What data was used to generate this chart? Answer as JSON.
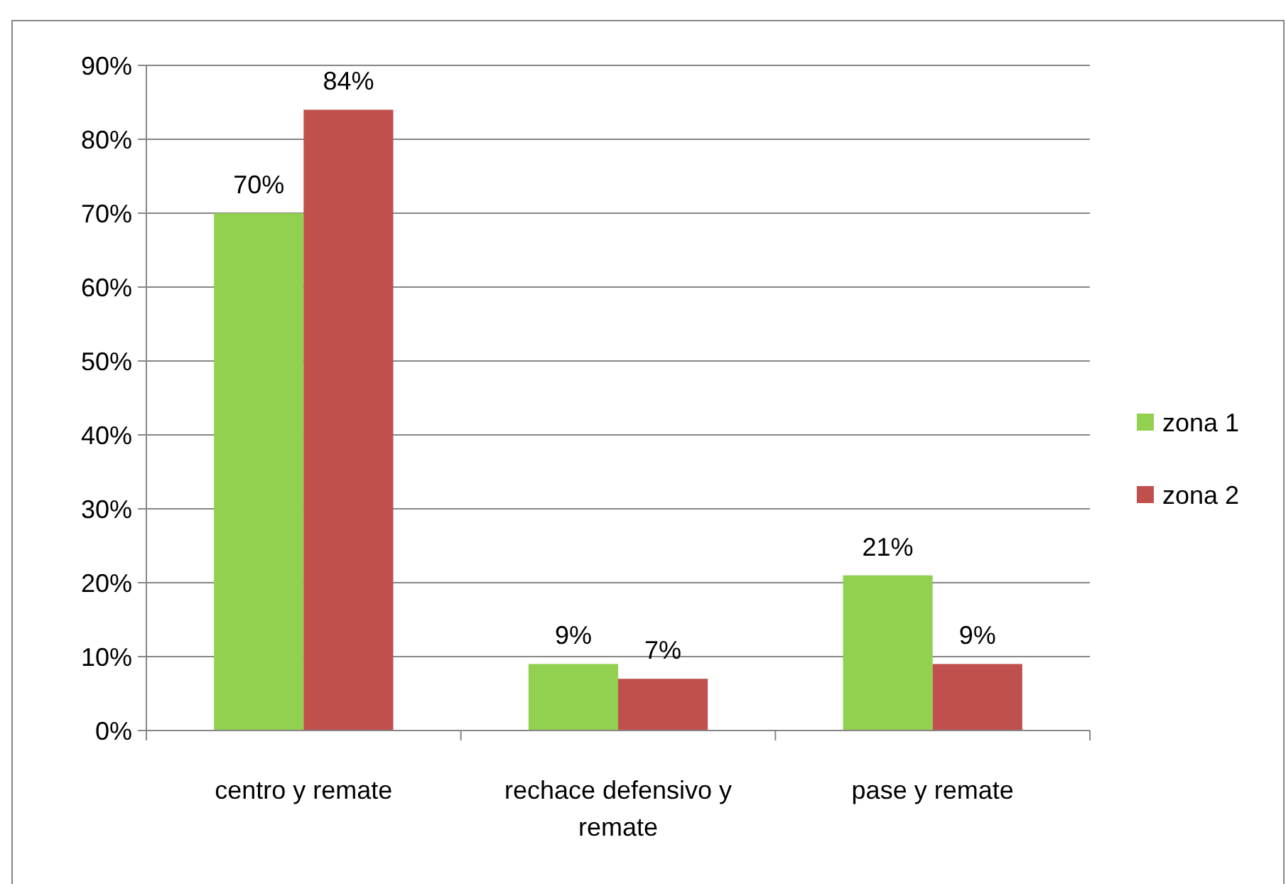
{
  "chart_data": {
    "type": "bar",
    "categories": [
      "centro y remate",
      "rechace defensivo y remate",
      "pase y remate"
    ],
    "series": [
      {
        "name": "zona 1",
        "color": "#92d050",
        "values": [
          70,
          9,
          21
        ],
        "value_labels": [
          "70%",
          "9%",
          "21%"
        ]
      },
      {
        "name": "zona 2",
        "color": "#c0504d",
        "values": [
          84,
          7,
          9
        ],
        "value_labels": [
          "84%",
          "7%",
          "9%"
        ]
      }
    ],
    "ylim": [
      0,
      90
    ],
    "yticks": [
      {
        "value": 0,
        "label": "0%"
      },
      {
        "value": 10,
        "label": "10%"
      },
      {
        "value": 20,
        "label": "20%"
      },
      {
        "value": 30,
        "label": "30%"
      },
      {
        "value": 40,
        "label": "40%"
      },
      {
        "value": 50,
        "label": "50%"
      },
      {
        "value": 60,
        "label": "60%"
      },
      {
        "value": 70,
        "label": "70%"
      },
      {
        "value": 80,
        "label": "80%"
      },
      {
        "value": 90,
        "label": "90%"
      }
    ],
    "grid": "y",
    "legend": "right"
  }
}
